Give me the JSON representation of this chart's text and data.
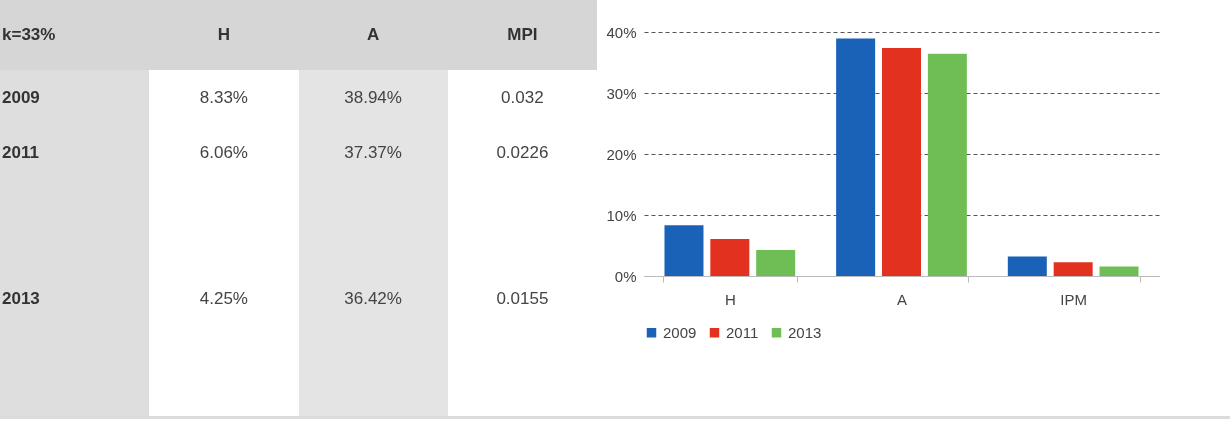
{
  "chart_data": [
    {
      "type": "other",
      "title": "k=33%",
      "categories": [
        "H",
        "A",
        "MPI"
      ],
      "y_categories": [
        "2009",
        "2011",
        "2013"
      ],
      "cell_labels": [
        [
          "8.33%",
          "38.94%",
          "0.032"
        ],
        [
          "6.06%",
          "37.37%",
          "0.0226"
        ],
        [
          "4.25%",
          "36.42%",
          "0.0155"
        ]
      ]
    },
    {
      "type": "bar",
      "categories": [
        "H",
        "A",
        "IPM"
      ],
      "series": [
        {
          "name": "2009",
          "color": "#1a62b8",
          "values": [
            8.33,
            38.94,
            3.2
          ]
        },
        {
          "name": "2011",
          "color": "#e2321f",
          "values": [
            6.06,
            37.37,
            2.26
          ]
        },
        {
          "name": "2013",
          "color": "#6fbe55",
          "values": [
            4.25,
            36.42,
            1.55
          ]
        }
      ],
      "ylim": [
        0,
        40
      ],
      "yticks": [
        {
          "value": 0,
          "label": "0%"
        },
        {
          "value": 10,
          "label": "10%"
        },
        {
          "value": 20,
          "label": "20%"
        },
        {
          "value": 30,
          "label": "30%"
        },
        {
          "value": 40,
          "label": "40%"
        }
      ],
      "grid": "y",
      "line_style": "dashed",
      "legend": "bottom"
    }
  ]
}
